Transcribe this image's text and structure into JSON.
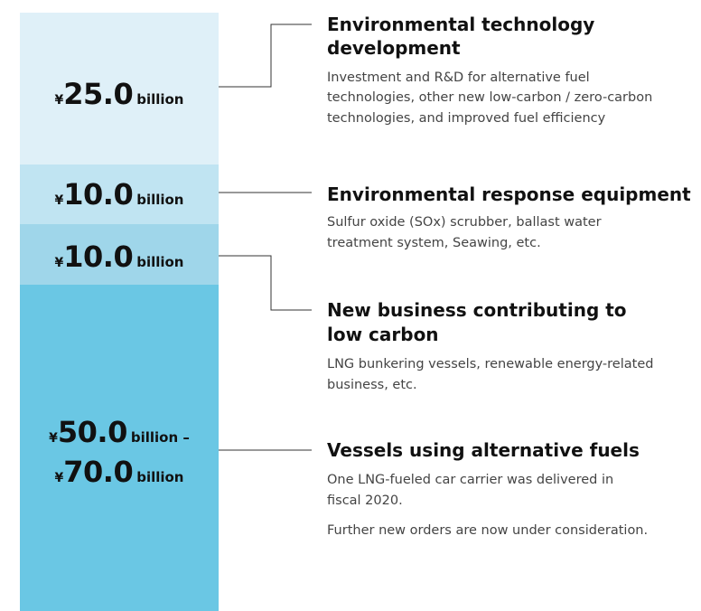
{
  "segments": [
    {
      "color": "#dff0f8",
      "lines": [
        {
          "currency": "¥",
          "amount": "25.0",
          "unit": "billion"
        }
      ]
    },
    {
      "color": "#c0e4f2",
      "lines": [
        {
          "currency": "¥",
          "amount": "10.0",
          "unit": "billion"
        }
      ]
    },
    {
      "color": "#9fd6ea",
      "lines": [
        {
          "currency": "¥",
          "amount": "10.0",
          "unit": "billion"
        }
      ]
    },
    {
      "color": "#6ac7e4",
      "lines": [
        {
          "currency": "¥",
          "amount": "50.0",
          "unit": "billion –"
        },
        {
          "currency": "¥",
          "amount": "70.0",
          "unit": "billion"
        }
      ]
    }
  ],
  "items": [
    {
      "title_lines": [
        "Environmental technology",
        "development"
      ],
      "paragraphs": [
        [
          "Investment and R&D for alternative fuel",
          "technologies, other new low-carbon / zero-carbon",
          "technologies, and improved fuel efficiency"
        ]
      ]
    },
    {
      "title_lines": [
        "Environmental response equipment"
      ],
      "paragraphs": [
        [
          "Sulfur oxide (SOx) scrubber, ballast water",
          "treatment system, Seawing, etc."
        ]
      ]
    },
    {
      "title_lines": [
        "New business contributing to",
        "low carbon"
      ],
      "paragraphs": [
        [
          "LNG bunkering vessels, renewable energy-related",
          "business, etc."
        ]
      ]
    },
    {
      "title_lines": [
        "Vessels using alternative fuels"
      ],
      "paragraphs": [
        [
          "One LNG-fueled car carrier was delivered in",
          "fiscal 2020."
        ],
        [
          "Further new orders are now under consideration."
        ]
      ]
    }
  ]
}
